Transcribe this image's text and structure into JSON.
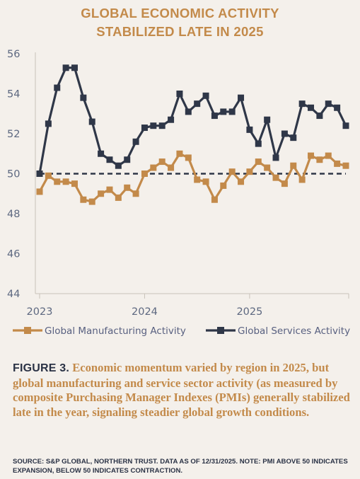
{
  "title_lines": [
    "GLOBAL ECONOMIC ACTIVITY",
    "STABILIZED LATE IN 2025"
  ],
  "caption": {
    "figure_label": "FIGURE 3.",
    "text": "Economic momentum varied by region in 2025, but global manufacturing and service sector activity (as measured by composite Purchasing Manager Indexes (PMIs) generally stabilized late in the year, signaling steadier global growth conditions."
  },
  "source_note": "SOURCE: S&P GLOBAL, NORTHERN TRUST.  DATA AS OF 12/31/2025.  NOTE: PMI ABOVE 50 INDICATES EXPANSION, BELOW 50 INDICATES CONTRACTION.",
  "colors": {
    "manufacturing": "#c38a4a",
    "services": "#2f3748",
    "reference_line": "#2f3748",
    "grid_axis": "#c9c2ba"
  },
  "chart_data": {
    "type": "line",
    "title": "GLOBAL ECONOMIC ACTIVITY STABILIZED LATE IN 2025",
    "x_labels": [
      "2023",
      "2024",
      "2025"
    ],
    "x_label_index": [
      0,
      12,
      24
    ],
    "ylim": [
      44,
      56
    ],
    "yticks": [
      44,
      46,
      48,
      50,
      52,
      54,
      56
    ],
    "reference_line": 50,
    "grid": false,
    "legend_position": "bottom",
    "series": [
      {
        "name": "Global Manufacturing Activity",
        "values": [
          49.1,
          49.9,
          49.6,
          49.6,
          49.5,
          48.7,
          48.6,
          49.0,
          49.2,
          48.8,
          49.3,
          49.0,
          50.0,
          50.3,
          50.6,
          50.3,
          51.0,
          50.8,
          49.7,
          49.6,
          48.7,
          49.4,
          50.1,
          49.6,
          50.1,
          50.6,
          50.3,
          49.8,
          49.5,
          50.4,
          49.7,
          50.9,
          50.7,
          50.9,
          50.5,
          50.4
        ]
      },
      {
        "name": "Global Services Activity",
        "values": [
          50.0,
          52.5,
          54.3,
          55.3,
          55.3,
          53.8,
          52.6,
          51.0,
          50.7,
          50.4,
          50.7,
          51.6,
          52.3,
          52.4,
          52.4,
          52.7,
          54.0,
          53.1,
          53.5,
          53.9,
          52.9,
          53.1,
          53.1,
          53.8,
          52.2,
          51.5,
          52.7,
          50.8,
          52.0,
          51.8,
          53.5,
          53.3,
          52.9,
          53.5,
          53.3,
          52.4
        ]
      }
    ]
  }
}
